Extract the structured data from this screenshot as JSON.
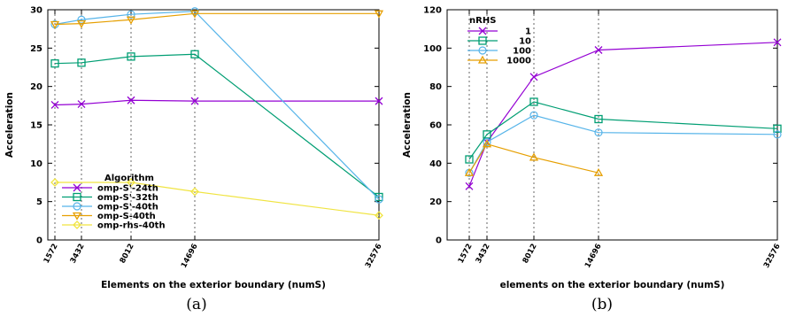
{
  "chart_data": [
    {
      "type": "line",
      "caption": "(a)",
      "xlabel": "Elements on the exterior boundary (numS)",
      "ylabel": "Acceleration",
      "x": [
        1572,
        3432,
        8012,
        14696,
        32576
      ],
      "x_tick_labels": [
        "1572",
        "3432",
        "8012",
        "14696",
        "32576"
      ],
      "ylim": [
        0,
        30
      ],
      "y_ticks": [
        0,
        5,
        10,
        15,
        20,
        25,
        30
      ],
      "grid": "vertical dashed lines at x ticks",
      "legend_title": "Algorithm",
      "legend_position": "bottom-left",
      "series": [
        {
          "name": "omp-S'-24th",
          "marker": "x",
          "color": "#9400d3",
          "values": [
            17.6,
            17.7,
            18.2,
            18.1,
            18.1
          ]
        },
        {
          "name": "omp-S'-32th",
          "marker": "square",
          "color": "#009e73",
          "values": [
            23.0,
            23.1,
            23.9,
            24.2,
            5.6
          ]
        },
        {
          "name": "omp-S'-40th",
          "marker": "circle-open",
          "color": "#56b4e9",
          "values": [
            28.1,
            28.7,
            29.4,
            29.8,
            5.3
          ]
        },
        {
          "name": "omp-S-40th",
          "marker": "triangle-down",
          "color": "#e69f00",
          "values": [
            28.1,
            28.2,
            28.7,
            29.5,
            29.5
          ]
        },
        {
          "name": "omp-rhs-40th",
          "marker": "diamond",
          "color": "#f0e442",
          "values": [
            7.5,
            null,
            7.5,
            6.3,
            3.2
          ]
        }
      ]
    },
    {
      "type": "line",
      "caption": "(b)",
      "xlabel": "elements on the exterior boundary (numS)",
      "ylabel": "Acceleration",
      "x": [
        1572,
        3432,
        8012,
        14696,
        32576
      ],
      "x_tick_labels": [
        "1572",
        "3432",
        "8012",
        "14696",
        "32576"
      ],
      "ylim": [
        0,
        120
      ],
      "y_ticks": [
        0,
        20,
        40,
        60,
        80,
        100,
        120
      ],
      "grid": "vertical dashed lines at x ticks",
      "legend_title": "nRHS",
      "legend_position": "top-left",
      "series": [
        {
          "name": "1",
          "marker": "x",
          "color": "#9400d3",
          "values": [
            28,
            51,
            85,
            99,
            103
          ]
        },
        {
          "name": "10",
          "marker": "square",
          "color": "#009e73",
          "values": [
            42,
            55,
            72,
            63,
            58
          ]
        },
        {
          "name": "100",
          "marker": "circle-open",
          "color": "#56b4e9",
          "values": [
            35,
            51,
            65,
            56,
            55
          ]
        },
        {
          "name": "1000",
          "marker": "triangle-up",
          "color": "#e69f00",
          "values": [
            35,
            50,
            43,
            35,
            null
          ]
        }
      ]
    }
  ]
}
